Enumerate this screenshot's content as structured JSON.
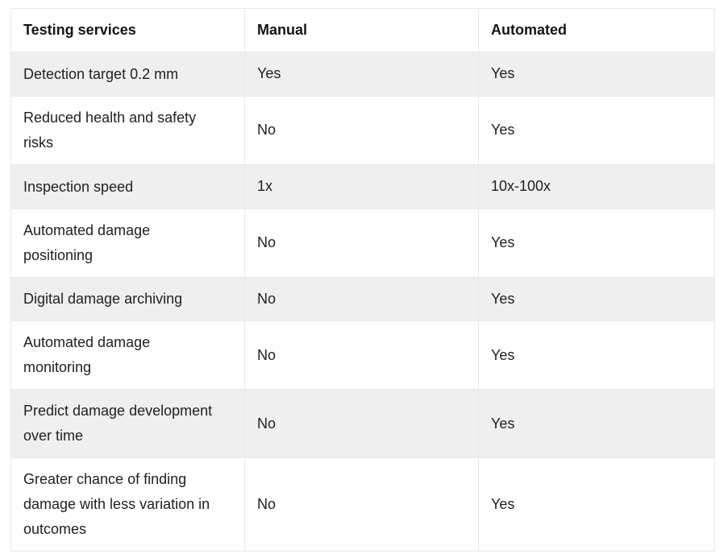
{
  "chart_data": {
    "type": "table",
    "columns": [
      "Testing services",
      "Manual",
      "Automated"
    ],
    "rows": [
      [
        "Detection target 0.2 mm",
        "Yes",
        "Yes"
      ],
      [
        "Reduced health and safety risks",
        "No",
        "Yes"
      ],
      [
        "Inspection speed",
        "1x",
        "10x-100x"
      ],
      [
        "Automated damage positioning",
        "No",
        "Yes"
      ],
      [
        "Digital damage archiving",
        "No",
        "Yes"
      ],
      [
        "Automated damage monitoring",
        "No",
        "Yes"
      ],
      [
        "Predict damage development over time",
        "No",
        "Yes"
      ],
      [
        "Greater chance of finding damage with less variation in outcomes",
        "No",
        "Yes"
      ]
    ],
    "layout": {
      "striped": true,
      "stripe_rows": "1st, 3rd, 5th, 7th body rows",
      "stripe_color": "#efefef",
      "border_color": "#e9e9e9",
      "header_background": "#ffffff",
      "text_color": "#202124",
      "header_text_color": "#141414",
      "page_background": "#ffffff"
    }
  }
}
